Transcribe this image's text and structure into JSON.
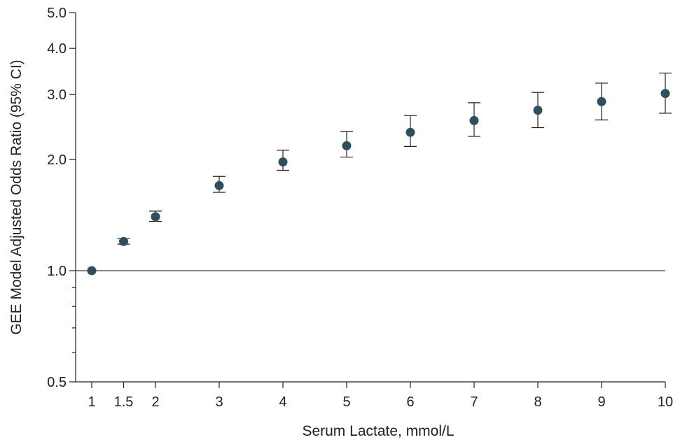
{
  "chart_data": {
    "type": "scatter",
    "xlabel": "Serum Lactate, mmol/L",
    "ylabel": "GEE Model Adjusted Odds Ratio (95% CI)",
    "y_scale": "log",
    "xlim": [
      1,
      10
    ],
    "ylim": [
      0.5,
      5.0
    ],
    "reference_line": 1.0,
    "x_ticks": [
      1,
      1.5,
      2,
      3,
      4,
      5,
      6,
      7,
      8,
      9,
      10
    ],
    "x_tick_labels": [
      "1",
      "1.5",
      "2",
      "3",
      "4",
      "5",
      "6",
      "7",
      "8",
      "9",
      "10"
    ],
    "y_ticks_labeled": [
      0.5,
      1.0,
      2.0,
      3.0,
      4.0,
      5.0
    ],
    "y_tick_labels": [
      "0.5",
      "1.0",
      "2.0",
      "3.0",
      "4.0",
      "5.0"
    ],
    "y_ticks_minor": [
      0.6,
      0.7,
      0.8,
      0.9
    ],
    "marker_color": "#2f4f5e",
    "line_color": "#231f20",
    "points": [
      {
        "x": 1,
        "y": 1.0,
        "lower": 1.0,
        "upper": 1.0
      },
      {
        "x": 1.5,
        "y": 1.2,
        "lower": 1.18,
        "upper": 1.22
      },
      {
        "x": 2,
        "y": 1.4,
        "lower": 1.36,
        "upper": 1.45
      },
      {
        "x": 3,
        "y": 1.7,
        "lower": 1.63,
        "upper": 1.8
      },
      {
        "x": 4,
        "y": 1.97,
        "lower": 1.87,
        "upper": 2.12
      },
      {
        "x": 5,
        "y": 2.18,
        "lower": 2.03,
        "upper": 2.38
      },
      {
        "x": 6,
        "y": 2.37,
        "lower": 2.17,
        "upper": 2.63
      },
      {
        "x": 7,
        "y": 2.55,
        "lower": 2.31,
        "upper": 2.85
      },
      {
        "x": 8,
        "y": 2.72,
        "lower": 2.44,
        "upper": 3.04
      },
      {
        "x": 9,
        "y": 2.87,
        "lower": 2.56,
        "upper": 3.22
      },
      {
        "x": 10,
        "y": 3.02,
        "lower": 2.67,
        "upper": 3.43
      }
    ]
  }
}
